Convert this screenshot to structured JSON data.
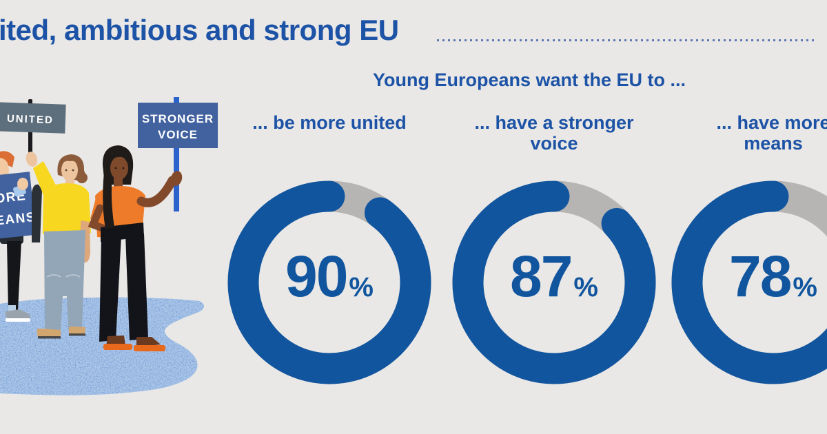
{
  "colors": {
    "background": "#e9e8e6",
    "accent_blue": "#1d53a6",
    "ring_blue": "#11559f",
    "track_gray": "#b6b5b3",
    "sign_blue": "#41619f",
    "sign_gray": "#5d6e7c",
    "stick_blue": "#2c62cc",
    "ground_blue": "#6794d3"
  },
  "header": {
    "title": "ited, ambitious and strong EU"
  },
  "illustration": {
    "signs": {
      "united": {
        "label": "UNITED"
      },
      "stronger_voice": {
        "lines": [
          "STRONGER",
          "VOICE"
        ]
      },
      "more_means": {
        "lines": [
          "MORE",
          "MEANS"
        ]
      }
    }
  },
  "chart_data": {
    "type": "donut",
    "title": "Young Europeans want the EU to ...",
    "unit": "%",
    "ring_color": "#11559f",
    "track_color": "#b6b5b3",
    "series": [
      {
        "label": "... be more united",
        "label_lines": [
          "... be more united"
        ],
        "value": 90
      },
      {
        "label": "... have a stronger voice",
        "label_lines": [
          "... have a stronger",
          "voice"
        ],
        "value": 87
      },
      {
        "label": "... have more means",
        "label_lines": [
          "... have more",
          "means"
        ],
        "value": 78
      }
    ]
  }
}
